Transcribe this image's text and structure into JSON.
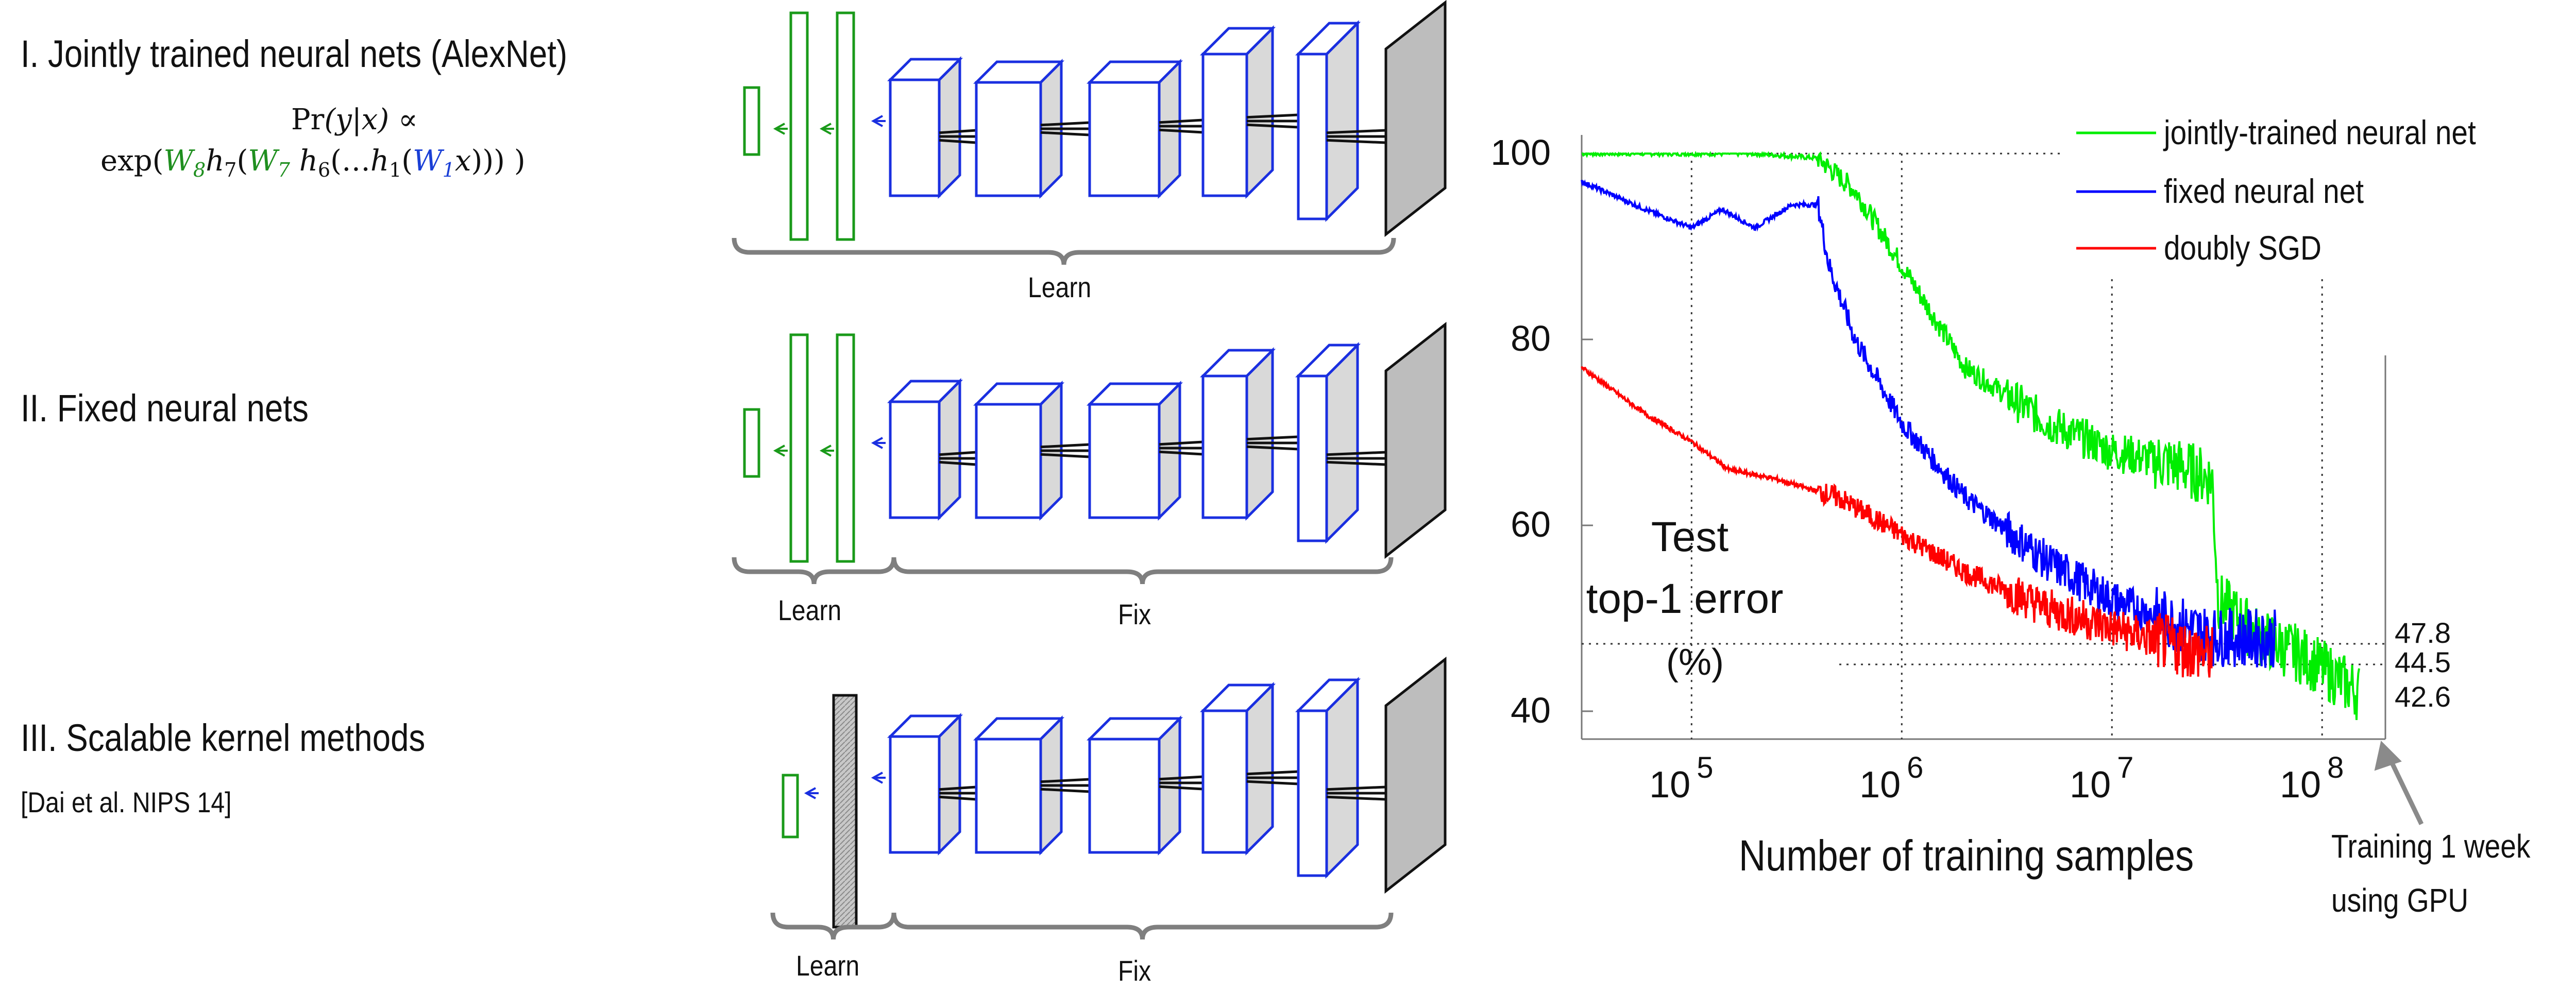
{
  "sections": [
    {
      "heading": "I. Jointly trained neural nets (AlexNet)",
      "formula": {
        "line1_prefix": "Pr",
        "line1_args": "(y|x)",
        "line1_suffix": "∝",
        "exp": "exp",
        "w8": "W",
        "w8sub": "8",
        "h7": "h",
        "h7sub": "7",
        "w7": "W",
        "w7sub": "7",
        "h6": "h",
        "h6sub": "6",
        "dots": "…",
        "h1": "h",
        "h1sub": "1",
        "w1": "W",
        "w1sub": "1",
        "x": "x"
      },
      "braces": [
        {
          "label": "Learn"
        }
      ]
    },
    {
      "heading": "II. Fixed neural nets",
      "braces": [
        {
          "label": "Learn"
        },
        {
          "label": "Fix"
        }
      ]
    },
    {
      "heading": "III. Scalable kernel methods",
      "citation": "[Dai et al. NIPS 14]",
      "braces": [
        {
          "label": "Learn"
        },
        {
          "label": "Fix"
        }
      ]
    }
  ],
  "colors": {
    "green": "#00ee00",
    "blue": "#0000ff",
    "red": "#ff0000",
    "net_green": "#1a9a1a",
    "net_blue": "#1a2fe0",
    "dark_layer": "#bdbdbd"
  },
  "chart_data": {
    "type": "line",
    "xscale": "log",
    "xlim": [
      30000,
      200000000
    ],
    "ylim": [
      37,
      102
    ],
    "yticks": [
      40,
      60,
      80,
      100
    ],
    "xticks": [
      {
        "base": "10",
        "exp": "5",
        "value": 100000
      },
      {
        "base": "10",
        "exp": "6",
        "value": 1000000
      },
      {
        "base": "10",
        "exp": "7",
        "value": 10000000
      },
      {
        "base": "10",
        "exp": "8",
        "value": 100000000
      }
    ],
    "xlabel": "Number of training samples",
    "ylabel_lines": [
      "Test",
      "top-1 error",
      "(%)"
    ],
    "right_annotations": [
      "47.8",
      "44.5",
      "42.6"
    ],
    "note_lines": [
      "Training 1 week",
      "using GPU"
    ],
    "legend_location": "top-right",
    "series": [
      {
        "name": "jointly-trained neural net",
        "color": "#00ee00",
        "points": [
          [
            30000,
            100
          ],
          [
            80000,
            100
          ],
          [
            200000,
            100
          ],
          [
            400000,
            99.5
          ],
          [
            600000,
            96
          ],
          [
            1000000,
            88
          ],
          [
            2000000,
            77
          ],
          [
            5000000,
            71
          ],
          [
            10000000,
            68
          ],
          [
            20000000,
            66.5
          ],
          [
            30000000,
            65
          ],
          [
            32000000,
            52
          ],
          [
            50000000,
            48
          ],
          [
            80000000,
            46
          ],
          [
            110000000,
            44
          ],
          [
            150000000,
            42
          ]
        ]
      },
      {
        "name": "fixed neural net",
        "color": "#0000ff",
        "points": [
          [
            30000,
            97
          ],
          [
            60000,
            94
          ],
          [
            100000,
            92
          ],
          [
            140000,
            94
          ],
          [
            200000,
            92
          ],
          [
            300000,
            94.5
          ],
          [
            400000,
            94.5
          ],
          [
            450000,
            88
          ],
          [
            600000,
            80
          ],
          [
            1000000,
            71
          ],
          [
            2000000,
            63
          ],
          [
            5000000,
            56
          ],
          [
            10000000,
            52
          ],
          [
            20000000,
            49.5
          ],
          [
            30000000,
            48
          ],
          [
            60000000,
            47.8
          ]
        ]
      },
      {
        "name": "doubly SGD",
        "color": "#ff0000",
        "points": [
          [
            30000,
            77
          ],
          [
            60000,
            72
          ],
          [
            100000,
            69
          ],
          [
            150000,
            66
          ],
          [
            250000,
            65
          ],
          [
            500000,
            63
          ],
          [
            1000000,
            59
          ],
          [
            2000000,
            55
          ],
          [
            5000000,
            51
          ],
          [
            10000000,
            49
          ],
          [
            20000000,
            47
          ],
          [
            30000000,
            46
          ]
        ]
      }
    ]
  }
}
